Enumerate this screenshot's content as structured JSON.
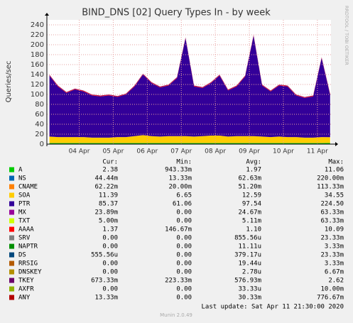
{
  "chart_data": {
    "type": "area",
    "stacked": true,
    "title": "BIND_DNS [02] Query Types In - by week",
    "y_label": "Queries/sec",
    "side_text": "RRDTOOL / TOBI OETIKER",
    "footer": "Last update: Sat Apr 11 21:30:00 2020",
    "version": "Munin 2.0.49",
    "grid": true,
    "columns": [
      "Cur:",
      "Min:",
      "Avg:",
      "Max:"
    ],
    "xlim": [
      3.55,
      11.9
    ],
    "xticks": [
      {
        "value": 4.5,
        "label": "04 Apr"
      },
      {
        "value": 5.5,
        "label": "05 Apr"
      },
      {
        "value": 6.5,
        "label": "06 Apr"
      },
      {
        "value": 7.5,
        "label": "07 Apr"
      },
      {
        "value": 8.5,
        "label": "08 Apr"
      },
      {
        "value": 9.5,
        "label": "09 Apr"
      },
      {
        "value": 10.5,
        "label": "10 Apr"
      },
      {
        "value": 11.5,
        "label": "11 Apr"
      }
    ],
    "ylim": [
      0,
      250
    ],
    "yticks": [
      0,
      20,
      40,
      60,
      80,
      100,
      120,
      140,
      160,
      180,
      200,
      220,
      240
    ],
    "x": [
      3.625,
      3.875,
      4.125,
      4.375,
      4.625,
      4.875,
      5.125,
      5.375,
      5.625,
      5.875,
      6.125,
      6.375,
      6.625,
      6.875,
      7.125,
      7.375,
      7.625,
      7.875,
      8.125,
      8.375,
      8.625,
      8.875,
      9.125,
      9.375,
      9.625,
      9.875,
      10.125,
      10.375,
      10.625,
      10.875,
      11.125,
      11.375,
      11.625,
      11.875
    ],
    "series": [
      {
        "name": "A",
        "color": "#00cc00",
        "cur": "2.38",
        "min": "943.33m",
        "avg": "1.97",
        "max": "11.06",
        "values": [
          2,
          2,
          2,
          2,
          2,
          2,
          2,
          2,
          2,
          2,
          2,
          2,
          2,
          2,
          2,
          2,
          2,
          2,
          2,
          2,
          2,
          2,
          2,
          2,
          2,
          2,
          2,
          2,
          2,
          2,
          2,
          2,
          2,
          2.38
        ]
      },
      {
        "name": "NS",
        "color": "#0066b3",
        "cur": "44.44m",
        "min": "13.33m",
        "avg": "62.63m",
        "max": "220.00m",
        "values": [
          0.06,
          0.06,
          0.06,
          0.06,
          0.06,
          0.06,
          0.06,
          0.06,
          0.06,
          0.06,
          0.06,
          0.06,
          0.06,
          0.06,
          0.06,
          0.06,
          0.06,
          0.06,
          0.06,
          0.06,
          0.06,
          0.06,
          0.06,
          0.06,
          0.06,
          0.06,
          0.06,
          0.06,
          0.06,
          0.06,
          0.06,
          0.06,
          0.06,
          0.044
        ]
      },
      {
        "name": "CNAME",
        "color": "#ff8000",
        "cur": "62.22m",
        "min": "20.00m",
        "avg": "51.20m",
        "max": "113.33m",
        "values": [
          0.05,
          0.05,
          0.05,
          0.05,
          0.05,
          0.05,
          0.05,
          0.05,
          0.05,
          0.05,
          0.05,
          0.05,
          0.05,
          0.05,
          0.05,
          0.05,
          0.05,
          0.05,
          0.05,
          0.05,
          0.05,
          0.05,
          0.05,
          0.05,
          0.05,
          0.05,
          0.05,
          0.05,
          0.05,
          0.05,
          0.05,
          0.05,
          0.05,
          0.062
        ]
      },
      {
        "name": "SOA",
        "color": "#ffcc00",
        "cur": "11.39",
        "min": "6.65",
        "avg": "12.59",
        "max": "34.55",
        "values": [
          13,
          12,
          12,
          12,
          12,
          11,
          11,
          11,
          12,
          12,
          14,
          16,
          14,
          13,
          14,
          14,
          14,
          13,
          14,
          15,
          15,
          13,
          14,
          14,
          14,
          13,
          12,
          13,
          12,
          12,
          11,
          11,
          12,
          11.39
        ]
      },
      {
        "name": "PTR",
        "color": "#330099",
        "cur": "85.37",
        "min": "61.06",
        "avg": "97.54",
        "max": "224.50",
        "values": [
          123,
          102,
          89,
          96,
          92,
          85,
          83,
          85,
          81,
          86,
          100,
          122,
          107,
          99,
          102,
          117,
          197,
          101,
          97,
          106,
          121,
          93,
          100,
          120,
          202,
          103,
          92,
          103,
          102,
          84,
          80,
          83,
          159,
          85.37
        ]
      },
      {
        "name": "MX",
        "color": "#990099",
        "cur": "23.89m",
        "min": "0.00",
        "avg": "24.67m",
        "max": "63.33m",
        "values": [
          0.025,
          0.025,
          0.025,
          0.025,
          0.025,
          0.025,
          0.025,
          0.025,
          0.025,
          0.025,
          0.025,
          0.025,
          0.025,
          0.025,
          0.025,
          0.025,
          0.025,
          0.025,
          0.025,
          0.025,
          0.025,
          0.025,
          0.025,
          0.025,
          0.025,
          0.025,
          0.025,
          0.025,
          0.025,
          0.025,
          0.025,
          0.025,
          0.025,
          0.024
        ]
      },
      {
        "name": "TXT",
        "color": "#ccff00",
        "cur": "5.00m",
        "min": "0.00",
        "avg": "5.11m",
        "max": "63.33m",
        "values": [
          0.005,
          0.005,
          0.005,
          0.005,
          0.005,
          0.005,
          0.005,
          0.005,
          0.005,
          0.005,
          0.005,
          0.005,
          0.005,
          0.005,
          0.005,
          0.005,
          0.005,
          0.005,
          0.005,
          0.005,
          0.005,
          0.005,
          0.005,
          0.005,
          0.005,
          0.005,
          0.005,
          0.005,
          0.005,
          0.005,
          0.005,
          0.005,
          0.005,
          0.005
        ]
      },
      {
        "name": "AAAA",
        "color": "#ff0000",
        "cur": "1.37",
        "min": "146.67m",
        "avg": "1.10",
        "max": "10.09",
        "values": [
          1.1,
          1.1,
          1.1,
          1.1,
          1.1,
          1.1,
          1.1,
          1.1,
          1.1,
          1.1,
          1.1,
          1.1,
          1.1,
          1.1,
          1.1,
          1.1,
          1.1,
          1.1,
          1.1,
          1.1,
          1.1,
          1.1,
          1.1,
          1.1,
          1.1,
          1.1,
          1.1,
          1.1,
          1.1,
          1.1,
          1.1,
          1.1,
          1.1,
          1.37
        ]
      },
      {
        "name": "SRV",
        "color": "#808080",
        "cur": "0.00",
        "min": "0.00",
        "avg": "855.56u",
        "max": "23.33m",
        "values": [
          0.001,
          0.001,
          0.001,
          0.001,
          0.001,
          0.001,
          0.001,
          0.001,
          0.001,
          0.001,
          0.001,
          0.001,
          0.001,
          0.001,
          0.001,
          0.001,
          0.001,
          0.001,
          0.001,
          0.001,
          0.001,
          0.001,
          0.001,
          0.001,
          0.001,
          0.001,
          0.001,
          0.001,
          0.001,
          0.001,
          0.001,
          0.001,
          0.001,
          0
        ]
      },
      {
        "name": "NAPTR",
        "color": "#008f00",
        "cur": "0.00",
        "min": "0.00",
        "avg": "11.11u",
        "max": "3.33m",
        "values": [
          0,
          0,
          0,
          0,
          0,
          0,
          0,
          0,
          0,
          0,
          0,
          0,
          0,
          0,
          0,
          0,
          0,
          0,
          0,
          0,
          0,
          0,
          0,
          0,
          0,
          0,
          0,
          0,
          0,
          0,
          0,
          0,
          0,
          0
        ]
      },
      {
        "name": "DS",
        "color": "#00487d",
        "cur": "555.56u",
        "min": "0.00",
        "avg": "379.17u",
        "max": "23.33m",
        "values": [
          0,
          0,
          0,
          0,
          0,
          0,
          0,
          0,
          0,
          0,
          0,
          0,
          0,
          0,
          0,
          0,
          0,
          0,
          0,
          0,
          0,
          0,
          0,
          0,
          0,
          0,
          0,
          0,
          0,
          0,
          0,
          0,
          0,
          0.0006
        ]
      },
      {
        "name": "RRSIG",
        "color": "#b35a00",
        "cur": "0.00",
        "min": "0.00",
        "avg": "19.44u",
        "max": "3.33m",
        "values": [
          0,
          0,
          0,
          0,
          0,
          0,
          0,
          0,
          0,
          0,
          0,
          0,
          0,
          0,
          0,
          0,
          0,
          0,
          0,
          0,
          0,
          0,
          0,
          0,
          0,
          0,
          0,
          0,
          0,
          0,
          0,
          0,
          0,
          0
        ]
      },
      {
        "name": "DNSKEY",
        "color": "#b38f00",
        "cur": "0.00",
        "min": "0.00",
        "avg": "2.78u",
        "max": "6.67m",
        "values": [
          0,
          0,
          0,
          0,
          0,
          0,
          0,
          0,
          0,
          0,
          0,
          0,
          0,
          0,
          0,
          0,
          0,
          0,
          0,
          0,
          0,
          0,
          0,
          0,
          0,
          0,
          0,
          0,
          0,
          0,
          0,
          0,
          0,
          0
        ]
      },
      {
        "name": "TKEY",
        "color": "#6b006b",
        "cur": "673.33m",
        "min": "223.33m",
        "avg": "576.93m",
        "max": "2.62",
        "values": [
          0.58,
          0.58,
          0.58,
          0.58,
          0.58,
          0.58,
          0.58,
          0.58,
          0.58,
          0.58,
          0.58,
          0.58,
          0.58,
          0.58,
          0.58,
          0.58,
          0.58,
          0.58,
          0.58,
          0.58,
          0.58,
          0.58,
          0.58,
          0.58,
          0.58,
          0.58,
          0.58,
          0.58,
          0.58,
          0.58,
          0.58,
          0.58,
          0.58,
          0.67
        ]
      },
      {
        "name": "AXFR",
        "color": "#8fb300",
        "cur": "0.00",
        "min": "0.00",
        "avg": "33.33u",
        "max": "10.00m",
        "values": [
          0,
          0,
          0,
          0,
          0,
          0,
          0,
          0,
          0,
          0,
          0,
          0,
          0,
          0,
          0,
          0,
          0,
          0,
          0,
          0,
          0,
          0,
          0,
          0,
          0,
          0,
          0,
          0,
          0,
          0,
          0,
          0,
          0,
          0
        ]
      },
      {
        "name": "ANY",
        "color": "#b30000",
        "cur": "13.33m",
        "min": "0.00",
        "avg": "30.33m",
        "max": "776.67m",
        "values": [
          0.03,
          0.03,
          0.03,
          0.03,
          0.03,
          0.03,
          0.03,
          0.03,
          0.03,
          0.03,
          0.03,
          0.03,
          0.03,
          0.03,
          0.03,
          0.03,
          0.03,
          0.03,
          0.03,
          0.03,
          0.03,
          0.03,
          0.03,
          0.03,
          0.03,
          0.03,
          0.03,
          0.03,
          0.03,
          0.03,
          0.03,
          0.03,
          0.03,
          0.013
        ]
      }
    ]
  }
}
